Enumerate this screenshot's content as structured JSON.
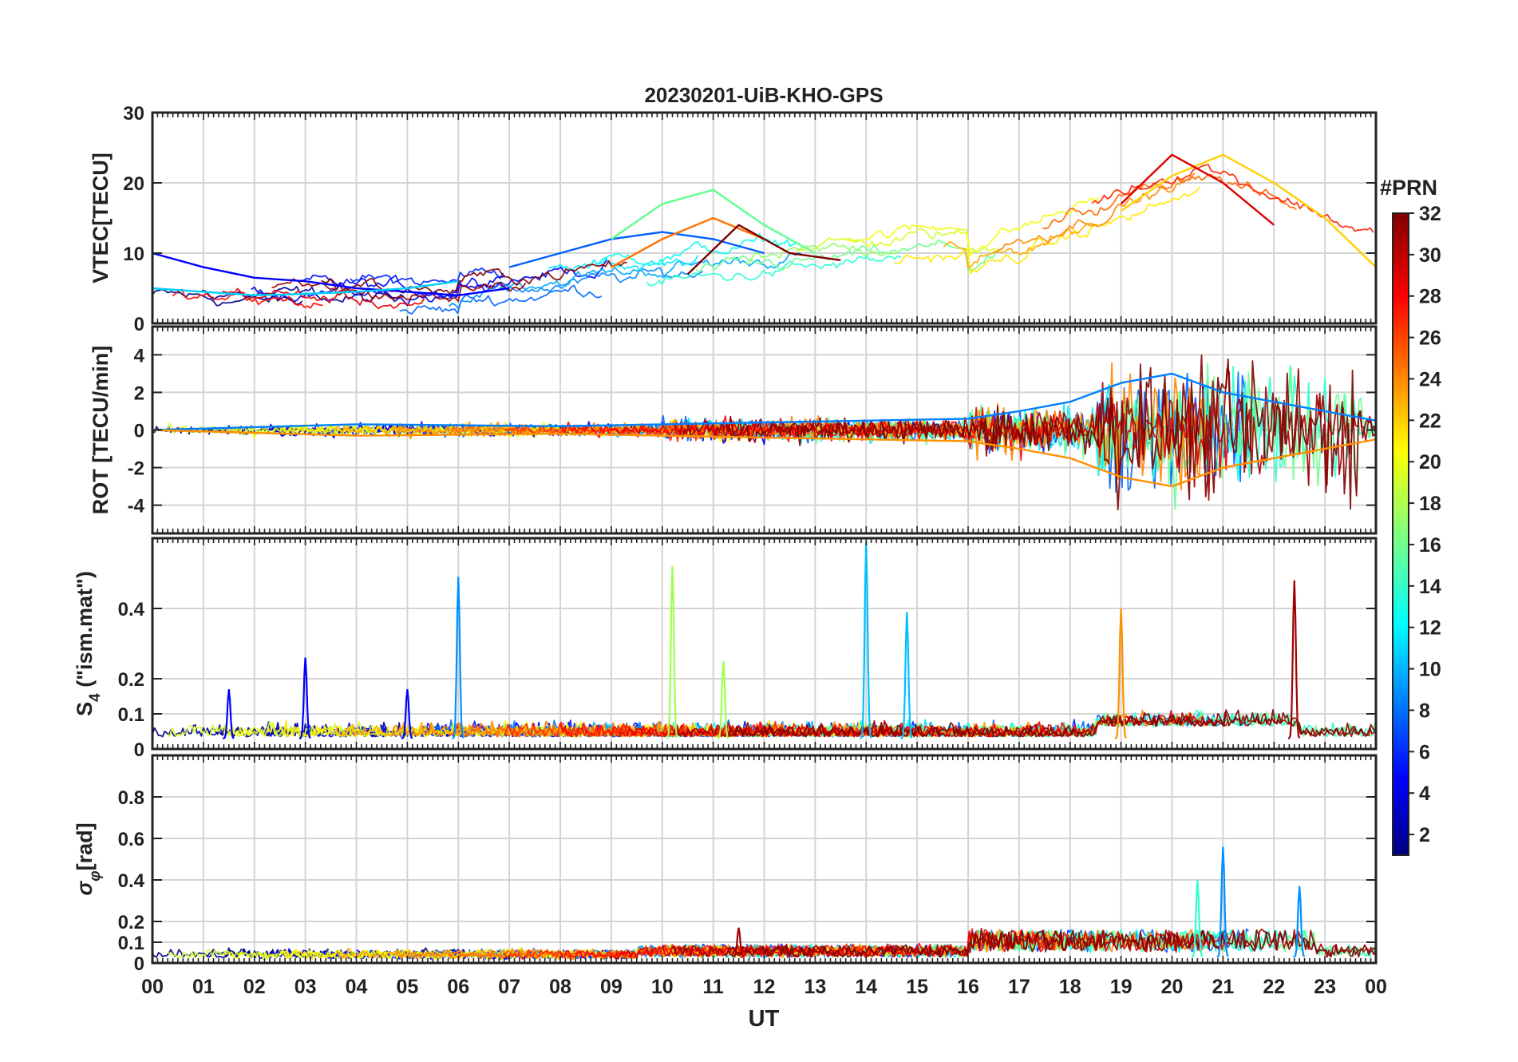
{
  "chart_data": {
    "type": "line",
    "title": "20230201-UiB-KHO-GPS",
    "xlabel": "UT",
    "x_tick_labels": [
      "00",
      "01",
      "02",
      "03",
      "04",
      "05",
      "06",
      "07",
      "08",
      "09",
      "10",
      "11",
      "12",
      "13",
      "14",
      "15",
      "16",
      "17",
      "18",
      "19",
      "20",
      "21",
      "22",
      "23",
      "00"
    ],
    "x_range_hours": [
      0,
      24
    ],
    "grid": true,
    "colorbar": {
      "title": "#PRN",
      "range": [
        1,
        32
      ],
      "tick_labels": [
        "2",
        "4",
        "6",
        "8",
        "10",
        "12",
        "14",
        "16",
        "18",
        "20",
        "22",
        "24",
        "26",
        "28",
        "30",
        "32"
      ],
      "tick_values": [
        2,
        4,
        6,
        8,
        10,
        12,
        14,
        16,
        18,
        20,
        22,
        24,
        26,
        28,
        30,
        32
      ],
      "colormap": "jet",
      "placement": "right"
    },
    "panels": [
      {
        "id": "vtec",
        "ylabel": "VTEC[TECU]",
        "ylim": [
          0,
          30
        ],
        "y_tick_values": [
          0,
          10,
          20,
          30
        ],
        "y_tick_labels": [
          "0",
          "10",
          "20",
          "30"
        ],
        "series": [
          {
            "prn": 3,
            "color": "#0000ff",
            "hours": [
              0,
              1,
              2,
              3,
              4,
              5,
              6,
              7
            ],
            "values": [
              10,
              8,
              6.5,
              6,
              5,
              4.5,
              4,
              5
            ]
          },
          {
            "prn": 7,
            "color": "#0060ff",
            "hours": [
              7,
              8,
              9,
              10,
              11,
              12
            ],
            "values": [
              8,
              10,
              12,
              13,
              12,
              10
            ]
          },
          {
            "prn": 12,
            "color": "#00d0ff",
            "hours": [
              0,
              1,
              2,
              3,
              4,
              5,
              6
            ],
            "values": [
              5,
              4.5,
              4,
              4.2,
              4.5,
              5,
              6
            ]
          },
          {
            "prn": 16,
            "color": "#60ff90",
            "hours": [
              9,
              10,
              11,
              12,
              13
            ],
            "values": [
              12,
              17,
              19,
              14,
              10
            ]
          },
          {
            "prn": 21,
            "color": "#ffd000",
            "hours": [
              19,
              20,
              21,
              22,
              23,
              24
            ],
            "values": [
              16,
              21,
              24,
              20,
              15,
              8
            ]
          },
          {
            "prn": 25,
            "color": "#ff7000",
            "hours": [
              9,
              10,
              11,
              12
            ],
            "values": [
              8,
              12,
              15,
              12
            ]
          },
          {
            "prn": 29,
            "color": "#e00000",
            "hours": [
              19,
              20,
              21,
              22
            ],
            "values": [
              17,
              24,
              20,
              14
            ]
          },
          {
            "prn": 32,
            "color": "#800000",
            "hours": [
              10.5,
              11.5,
              12.5,
              13.5
            ],
            "values": [
              7,
              14,
              10,
              9
            ]
          }
        ]
      },
      {
        "id": "rot",
        "ylabel": "ROT [TECU/min]",
        "ylim": [
          -5.5,
          5.5
        ],
        "y_tick_values": [
          -4,
          -2,
          0,
          2,
          4
        ],
        "y_tick_labels": [
          "-4",
          "-2",
          "0",
          "2",
          "4"
        ],
        "series": [
          {
            "prn": 8,
            "color": "#0080ff",
            "hours": [
              0,
              4,
              8,
              12,
              16,
              17,
              18,
              19,
              20,
              21,
              22,
              23,
              24
            ],
            "values": [
              0,
              0.3,
              0.2,
              0.4,
              0.6,
              1,
              1.5,
              2.5,
              3,
              2,
              1.5,
              1,
              0.5
            ]
          },
          {
            "prn": 24,
            "color": "#ff9000",
            "hours": [
              0,
              4,
              8,
              12,
              16,
              17,
              18,
              19,
              20,
              21,
              22,
              23,
              24
            ],
            "values": [
              0,
              -0.3,
              -0.2,
              -0.4,
              -0.6,
              -1,
              -1.5,
              -2.5,
              -3,
              -2,
              -1.5,
              -1,
              -0.5
            ]
          }
        ]
      },
      {
        "id": "s4",
        "ylabel": "S4 (\"ism.mat\")",
        "ylabel_main": "S",
        "ylabel_sub": "4",
        "ylabel_rest": " (\"ism.mat\")",
        "ylim": [
          0,
          0.6
        ],
        "y_tick_values": [
          0,
          0.1,
          0.2,
          0.4
        ],
        "y_tick_labels": [
          "0",
          "0.1",
          "0.2",
          "0.4"
        ],
        "series": [
          {
            "prn": 3,
            "color": "#0000ff",
            "hours": [
              1.5,
              3.0,
              5.0
            ],
            "values": [
              0.17,
              0.26,
              0.17
            ]
          },
          {
            "prn": 9,
            "color": "#0090ff",
            "hours": [
              6.0
            ],
            "values": [
              0.49
            ]
          },
          {
            "prn": 11,
            "color": "#00c0ff",
            "hours": [
              14.0,
              14.8
            ],
            "values": [
              0.59,
              0.39
            ]
          },
          {
            "prn": 17,
            "color": "#a0ff50",
            "hours": [
              10.2,
              11.2
            ],
            "values": [
              0.52,
              0.25
            ]
          },
          {
            "prn": 24,
            "color": "#ff9000",
            "hours": [
              19.0
            ],
            "values": [
              0.4
            ]
          },
          {
            "prn": 31,
            "color": "#a00000",
            "hours": [
              22.4
            ],
            "values": [
              0.48
            ]
          }
        ]
      },
      {
        "id": "sigma_phi",
        "ylabel": "σφ[rad]",
        "ylabel_main": "σ",
        "ylabel_sub": "φ",
        "ylabel_rest": "[rad]",
        "ylim": [
          0,
          1.0
        ],
        "y_tick_values": [
          0,
          0.1,
          0.2,
          0.4,
          0.6,
          0.8
        ],
        "y_tick_labels": [
          "0",
          "0.1",
          "0.2",
          "0.4",
          "0.6",
          "0.8"
        ],
        "series": [
          {
            "prn": 9,
            "color": "#0090ff",
            "hours": [
              21.0,
              22.5
            ],
            "values": [
              0.56,
              0.37
            ]
          },
          {
            "prn": 14,
            "color": "#30ffd0",
            "hours": [
              20.5
            ],
            "values": [
              0.4
            ]
          },
          {
            "prn": 31,
            "color": "#a00000",
            "hours": [
              11.5
            ],
            "values": [
              0.17
            ]
          }
        ]
      }
    ]
  }
}
